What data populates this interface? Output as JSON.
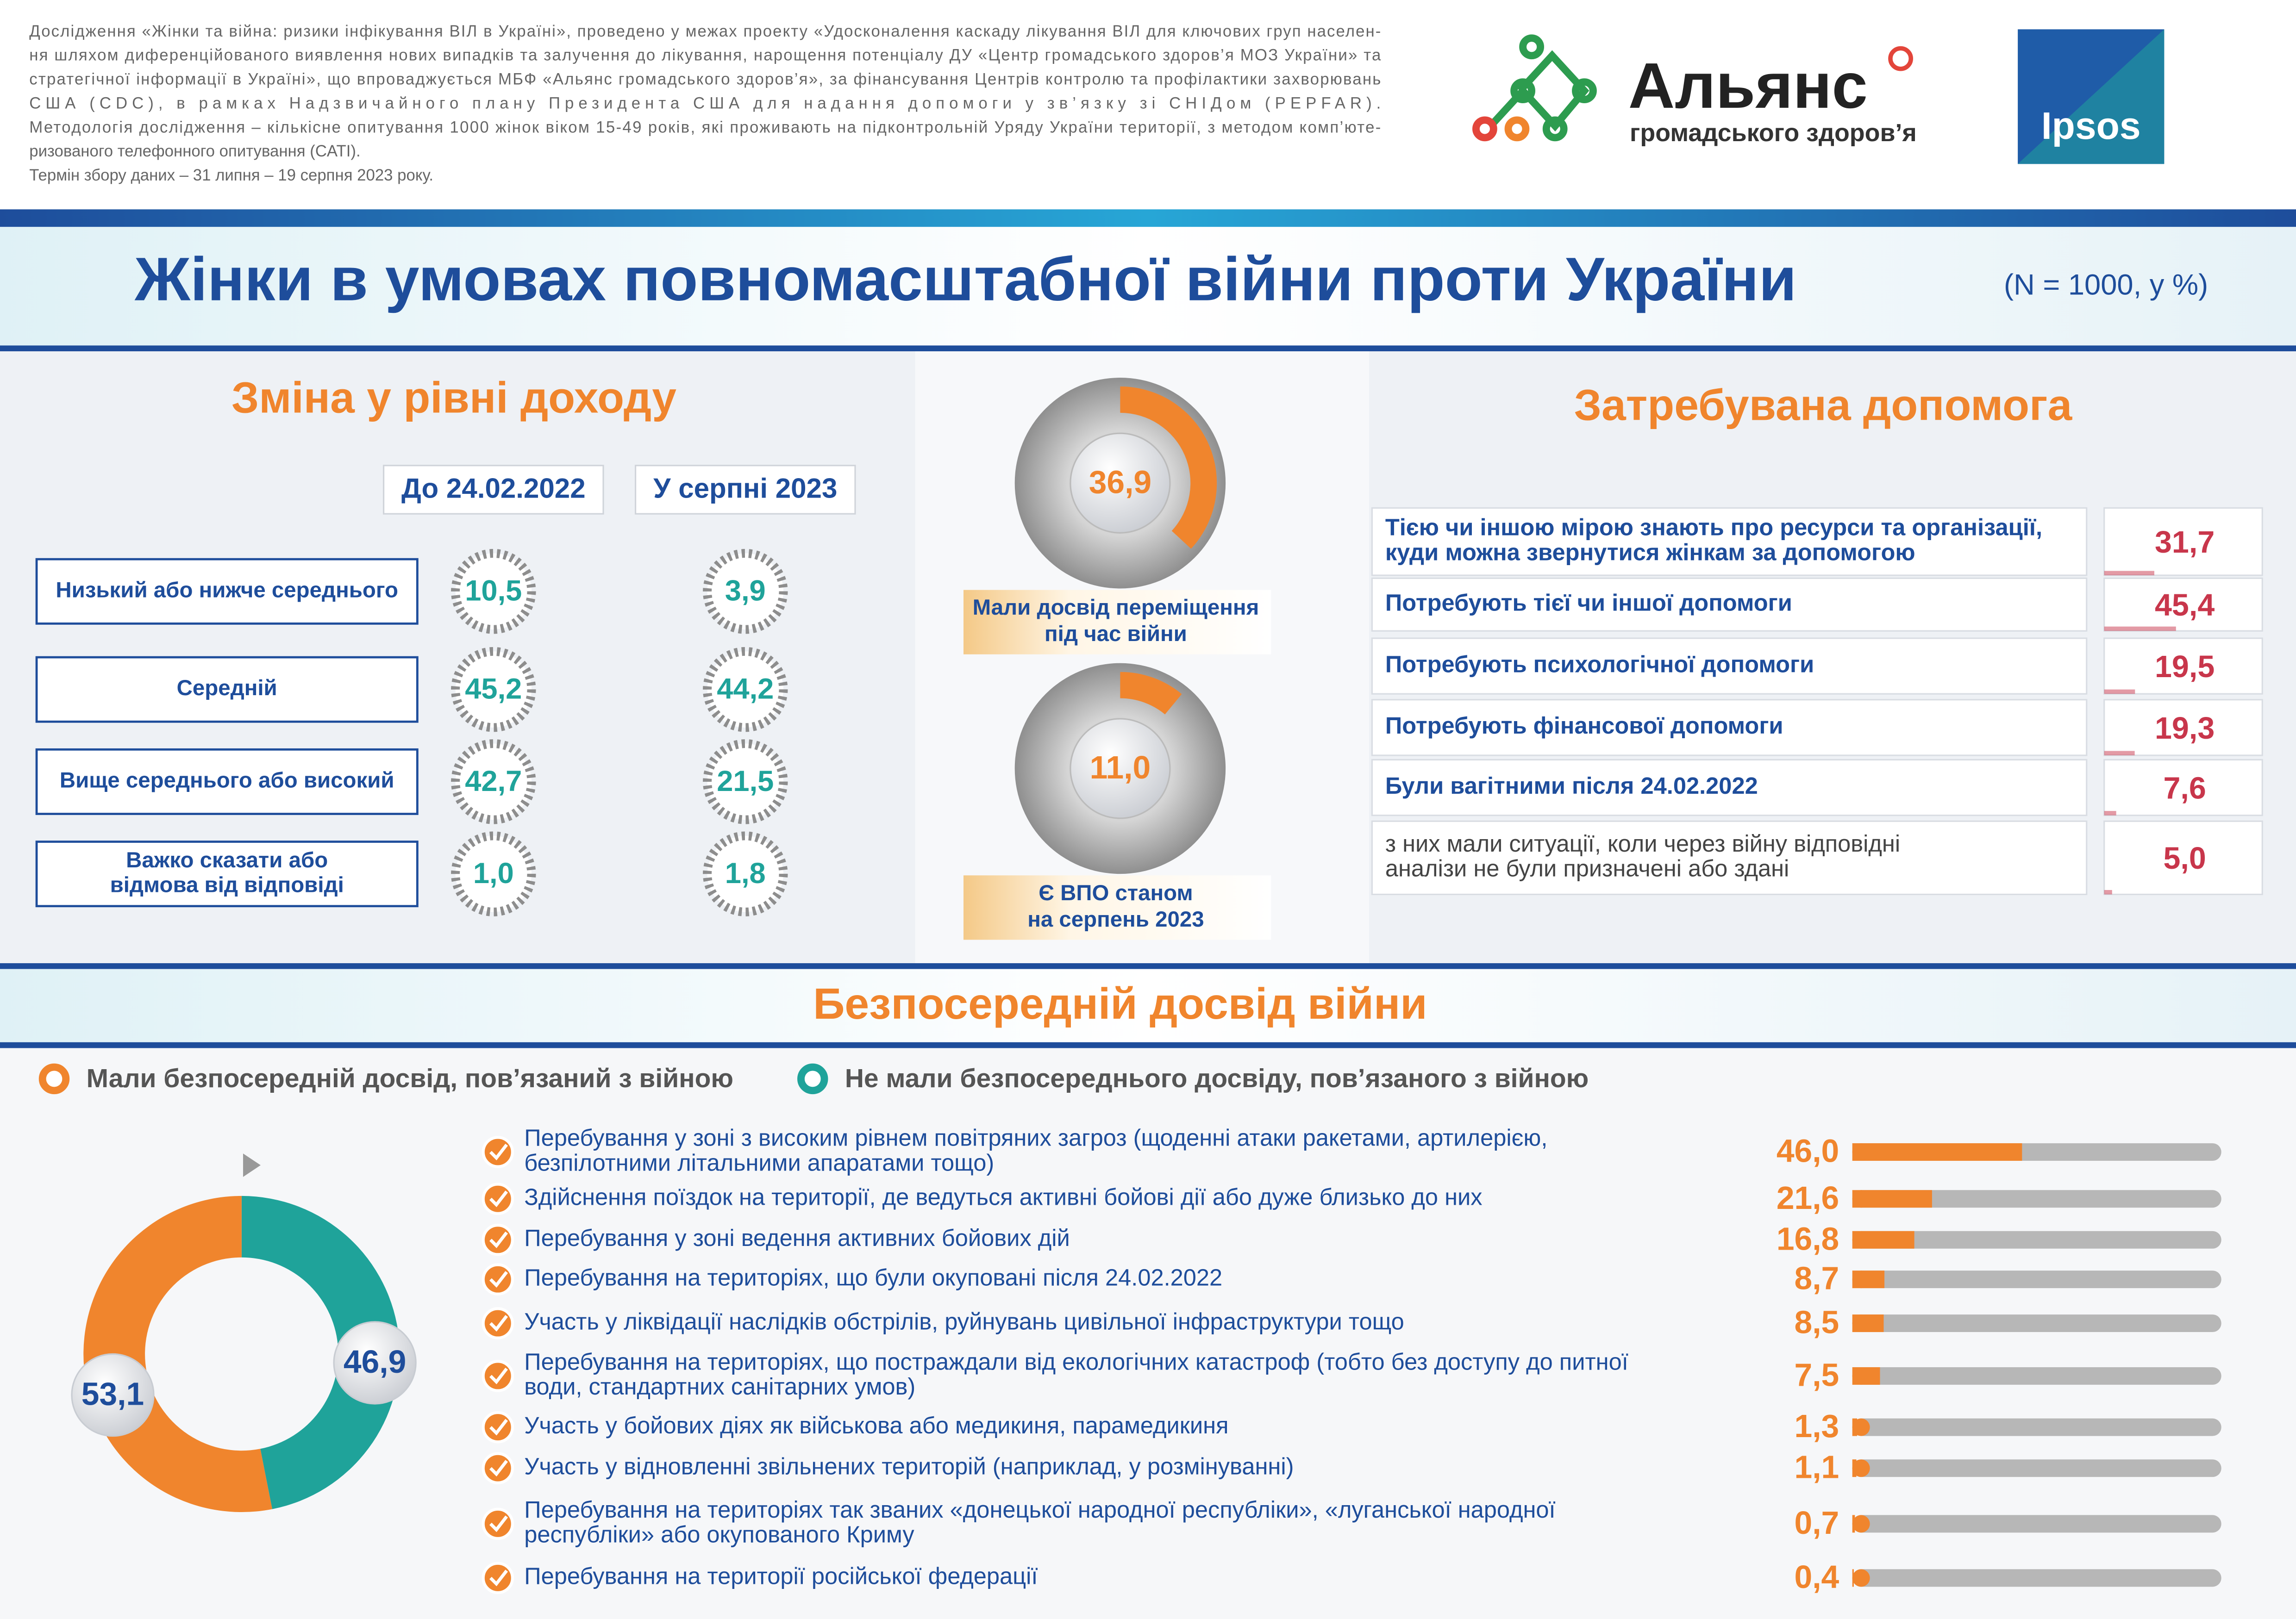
{
  "header": {
    "note": [
      "Дослідження «Жінки та війна: ризики інфікування ВІЛ в Україні», проведено у межах проекту «Удосконалення каскаду лікування ВІЛ для ключових груп населен-",
      "ня шляхом диференційованого виявлення нових випадків та залучення до лікування, нарощення потенціалу ДУ «Центр громадського здоров’я МОЗ України» та",
      "стратегічної інформації в Україні», що впроваджується МБФ «Альянс громадського здоров’я», за фінансування Центрів контролю та профілактики захворювань",
      "США (CDC), в рамках Надзвичайного плану Президента США для надання допомоги у зв’язку зі СНІДом (PEPFAR).",
      "Методологія дослідження – кількісне опитування 1000 жінок віком 15-49 років, які проживають на підконтрольній Уряду України території, з методом комп’юте-",
      "ризованого телефонного опитування (CATI).",
      "Термін збору даних – 31 липня – 19 серпня 2023 року."
    ],
    "logo_alliance": "Альянс",
    "logo_alliance_sub": "громадського здоров’я",
    "logo_ipsos": "Ipsos",
    "title": "Жінки в умовах повномасштабної війни проти України",
    "subtitle": "(N = 1000, у %)"
  },
  "income": {
    "title": "Зміна у рівні доходу",
    "columns": [
      "До 24.02.2022",
      "У серпні 2023"
    ],
    "rows": [
      {
        "label": [
          "Низький або нижче середнього"
        ],
        "values": [
          10.5,
          3.9
        ],
        "value_labels": [
          "10,5",
          "3,9"
        ]
      },
      {
        "label": [
          "Середній"
        ],
        "values": [
          45.2,
          44.2
        ],
        "value_labels": [
          "45,2",
          "44,2"
        ]
      },
      {
        "label": [
          "Вище середнього або високий"
        ],
        "values": [
          42.7,
          21.5
        ],
        "value_labels": [
          "42,7",
          "21,5"
        ]
      },
      {
        "label": [
          "Важко сказати або",
          "відмова від відповіді"
        ],
        "values": [
          1.0,
          1.8
        ],
        "value_labels": [
          "1,0",
          "1,8"
        ]
      }
    ]
  },
  "displacement": [
    {
      "value": 36.9,
      "value_label": "36,9",
      "label": [
        "Мали досвід переміщення",
        "під час війни"
      ]
    },
    {
      "value": 11.0,
      "value_label": "11,0",
      "label": [
        "Є ВПО станом",
        "на серпень 2023"
      ]
    }
  ],
  "help": {
    "title": "Затребувана допомога",
    "rows": [
      {
        "label": [
          "Тією чи іншою мірою знають про ресурси та організації,",
          "куди можна звернутися жінкам за допомогою"
        ],
        "value": 31.7,
        "value_label": "31,7",
        "bold": true
      },
      {
        "label": [
          "Потребують тієї чи іншої допомоги"
        ],
        "value": 45.4,
        "value_label": "45,4",
        "bold": true
      },
      {
        "label": [
          "Потребують психологічної допомоги"
        ],
        "value": 19.5,
        "value_label": "19,5",
        "bold": true
      },
      {
        "label": [
          "Потребують фінансової допомоги"
        ],
        "value": 19.3,
        "value_label": "19,3",
        "bold": true
      },
      {
        "label": [
          "Були вагітними після 24.02.2022"
        ],
        "value": 7.6,
        "value_label": "7,6",
        "bold": true
      },
      {
        "label": [
          "з них мали ситуації, коли через війну відповідні",
          "аналізи не були призначені або здані"
        ],
        "value": 5.0,
        "value_label": "5,0",
        "bold": false
      }
    ]
  },
  "experience": {
    "title": "Безпосередній досвід війни",
    "series": [
      {
        "name": "Мали безпосередній досвід, пов’язаний з війною",
        "color": "#f0852d",
        "value": 53.1,
        "value_label": "53,1"
      },
      {
        "name": "Не мали безпосереднього досвіду, пов’язаного з війною",
        "color": "#1fa39a",
        "value": 46.9,
        "value_label": "46,9"
      }
    ],
    "items": [
      {
        "label": [
          "Перебування у зоні з високим рівнем повітряних загроз (щоденні атаки ракетами, артилерією,",
          "безпілотними літальними апаратами тощо)"
        ],
        "value": 46.0,
        "value_label": "46,0"
      },
      {
        "label": [
          "Здійснення поїздок на території, де ведуться активні бойові дії або дуже близько до них"
        ],
        "value": 21.6,
        "value_label": "21,6"
      },
      {
        "label": [
          "Перебування у зоні ведення активних бойових дій"
        ],
        "value": 16.8,
        "value_label": "16,8"
      },
      {
        "label": [
          "Перебування на територіях, що були окуповані після 24.02.2022"
        ],
        "value": 8.7,
        "value_label": "8,7"
      },
      {
        "label": [
          "Участь у ліквідації наслідків обстрілів, руйнувань цивільної інфраструктури тощо"
        ],
        "value": 8.5,
        "value_label": "8,5"
      },
      {
        "label": [
          "Перебування на територіях, що постраждали від екологічних катастроф (тобто без доступу до питної",
          "води, стандартних санітарних умов)"
        ],
        "value": 7.5,
        "value_label": "7,5"
      },
      {
        "label": [
          "Участь у бойових діях як військова або медикиня, парамедикиня"
        ],
        "value": 1.3,
        "value_label": "1,3"
      },
      {
        "label": [
          "Участь у відновленні звільнених територій (наприклад, у розмінуванні)"
        ],
        "value": 1.1,
        "value_label": "1,1"
      },
      {
        "label": [
          "Перебування на територіях так званих «донецької народної республіки», «луганської народної",
          "республіки» або окупованого Криму"
        ],
        "value": 0.7,
        "value_label": "0,7"
      },
      {
        "label": [
          "Перебування на території російської федерації"
        ],
        "value": 0.4,
        "value_label": "0,4"
      }
    ]
  }
}
